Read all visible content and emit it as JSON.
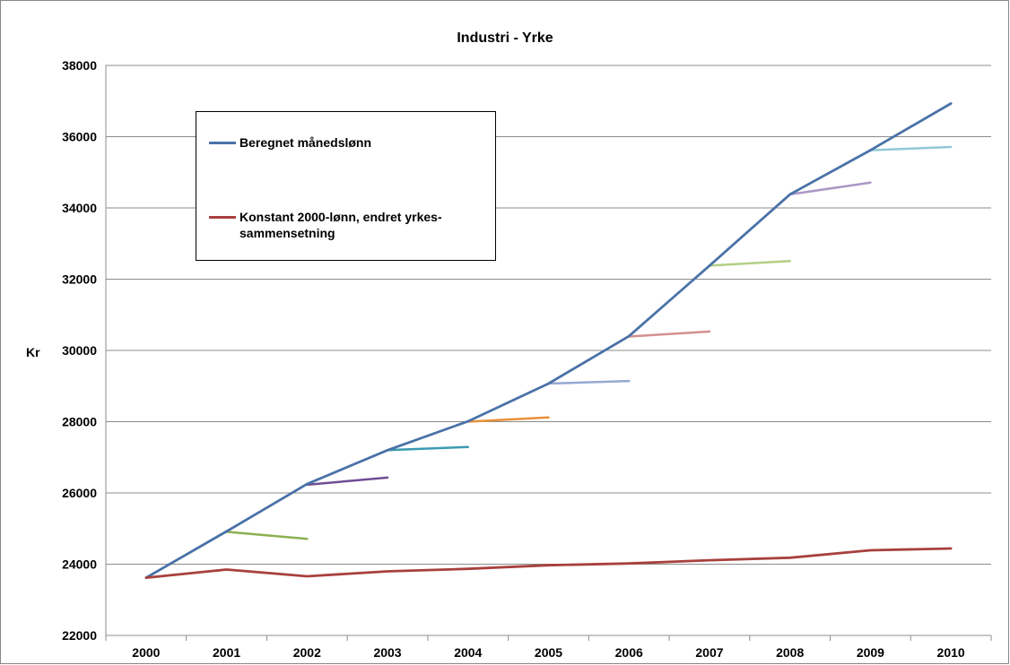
{
  "chart_data": {
    "type": "line",
    "title": "Industri - Yrke",
    "xlabel": "",
    "ylabel": "Kr",
    "ylim": [
      22000,
      38000
    ],
    "yticks": [
      "22000",
      "24000",
      "26000",
      "28000",
      "30000",
      "32000",
      "34000",
      "36000",
      "38000"
    ],
    "categories": [
      "2000",
      "2001",
      "2002",
      "2003",
      "2004",
      "2005",
      "2006",
      "2007",
      "2008",
      "2009",
      "2010"
    ],
    "grid": "horizontal",
    "legend_position": "upper-left",
    "series": [
      {
        "name": "Beregnet månedslønn",
        "color": "#4A72A8",
        "values": [
          23620,
          24920,
          26250,
          27200,
          28010,
          29070,
          30400,
          32380,
          34380,
          35620,
          36930
        ]
      },
      {
        "name": "Konstant 2000-lønn, endret yrkes-sammensetning",
        "color": "#A8403E",
        "values": [
          23620,
          23850,
          23660,
          23800,
          23870,
          23970,
          24020,
          24110,
          24180,
          24390,
          24440
        ]
      }
    ],
    "segments": [
      {
        "from": "2001",
        "to": "2002",
        "values": [
          24910,
          24710
        ],
        "color": "#8BB04F"
      },
      {
        "from": "2002",
        "to": "2003",
        "values": [
          26230,
          26430
        ],
        "color": "#6F4E94"
      },
      {
        "from": "2003",
        "to": "2004",
        "values": [
          27200,
          27290
        ],
        "color": "#3A9BB0"
      },
      {
        "from": "2004",
        "to": "2005",
        "values": [
          28000,
          28120
        ],
        "color": "#E8913A"
      },
      {
        "from": "2005",
        "to": "2006",
        "values": [
          29070,
          29140
        ],
        "color": "#95A9D2"
      },
      {
        "from": "2006",
        "to": "2007",
        "values": [
          30390,
          30530
        ],
        "color": "#D3908E"
      },
      {
        "from": "2007",
        "to": "2008",
        "values": [
          32380,
          32510
        ],
        "color": "#B3CF84"
      },
      {
        "from": "2008",
        "to": "2009",
        "values": [
          34380,
          34710
        ],
        "color": "#AB98C5"
      },
      {
        "from": "2009",
        "to": "2010",
        "values": [
          35620,
          35710
        ],
        "color": "#92C8D8"
      }
    ]
  }
}
